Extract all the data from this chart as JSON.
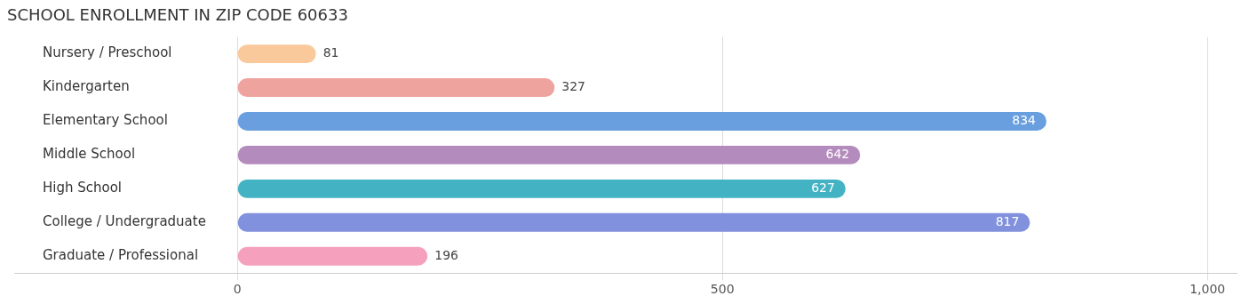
{
  "chart_data": {
    "type": "bar",
    "orientation": "horizontal",
    "title": "SCHOOL ENROLLMENT IN ZIP CODE 60633",
    "categories": [
      "Nursery / Preschool",
      "Kindergarten",
      "Elementary School",
      "Middle School",
      "High School",
      "College / Undergraduate",
      "Graduate / Professional"
    ],
    "values": [
      81,
      327,
      834,
      642,
      627,
      817,
      196
    ],
    "colors": [
      "#f9c99b",
      "#eea39f",
      "#6a9fdf",
      "#b48bbd",
      "#43b3c3",
      "#8291dd",
      "#f5a0bd"
    ],
    "xlim": [
      -230,
      1030
    ],
    "xticks": [
      0,
      500,
      {
        "value": 1000,
        "label": "1,000"
      }
    ],
    "grid": "x",
    "data_labels": true,
    "legend": false
  }
}
